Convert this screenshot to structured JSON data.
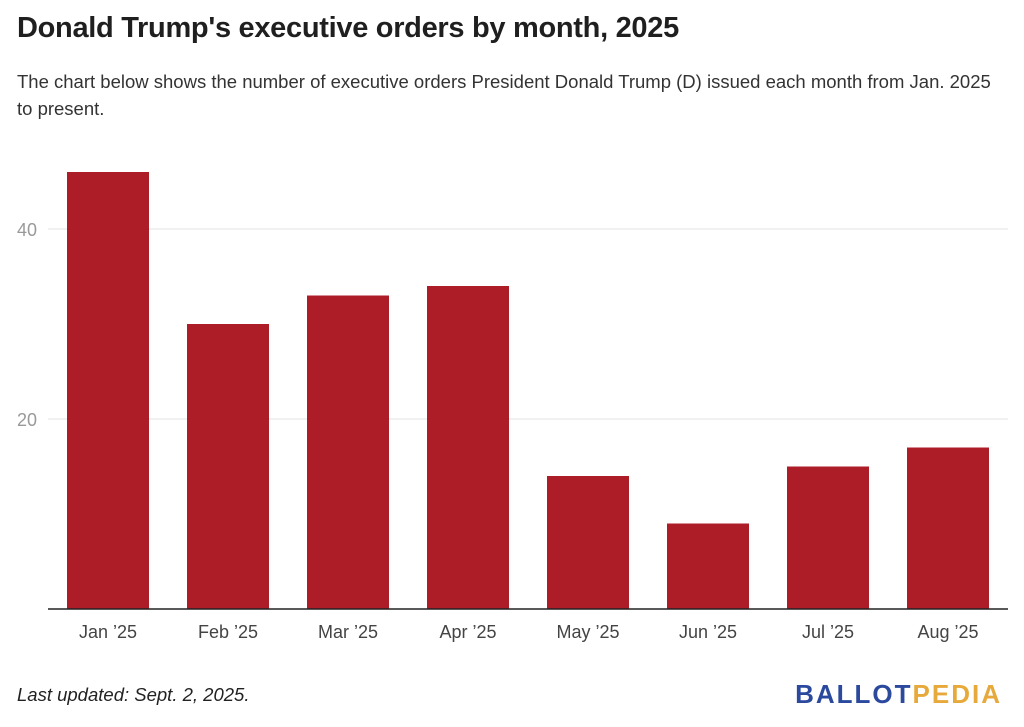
{
  "title": "Donald Trump's executive orders by month, 2025",
  "subtitle": "The chart below shows the number of executive orders President Donald Trump (D) issued each month from Jan. 2025 to present.",
  "footer": {
    "last_updated": "Last updated: Sept. 2, 2025."
  },
  "brand": {
    "part1": "BALLOT",
    "part2": "PEDIA"
  },
  "colors": {
    "bar": "#ad1d28",
    "grid": "#e3e3e3",
    "axis": "#222222",
    "tick_label": "#999999",
    "category_label": "#444444"
  },
  "chart_data": {
    "type": "bar",
    "categories": [
      "Jan ’25",
      "Feb ’25",
      "Mar ’25",
      "Apr ’25",
      "May ’25",
      "Jun ’25",
      "Jul ’25",
      "Aug ’25"
    ],
    "values": [
      46,
      30,
      33,
      34,
      14,
      9,
      15,
      17
    ],
    "yticks": [
      20,
      40
    ],
    "ylim": [
      0,
      46
    ],
    "grid": true,
    "legend": "none"
  }
}
